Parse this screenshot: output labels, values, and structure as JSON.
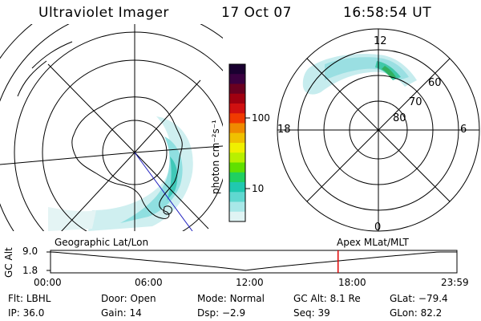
{
  "header": {
    "instrument": "Ultraviolet Imager",
    "date": "17 Oct 07",
    "time": "16:58:54 UT"
  },
  "colorbar": {
    "unit_label": "photon cm⁻²s⁻¹",
    "ticks": [
      "100",
      "10"
    ],
    "colors": [
      "#1a0030",
      "#3a0040",
      "#6a0020",
      "#a00010",
      "#d01010",
      "#f03a00",
      "#f08a00",
      "#f0c000",
      "#f0f000",
      "#b8f000",
      "#60e000",
      "#20d060",
      "#20c8b0",
      "#60d8d0",
      "#a8e8e8",
      "#e0f4f4"
    ]
  },
  "geo_map": {
    "label": "Geographic Lat/Lon"
  },
  "mag_map": {
    "label": "Apex MLat/MLT",
    "mlt_labels": {
      "top": "12",
      "left": "18",
      "right": "6",
      "bottom": "0"
    },
    "mlat_labels": [
      "60",
      "70",
      "80"
    ]
  },
  "altitude_plot": {
    "ylabel": "GC Alt",
    "yticks": [
      "9.0",
      "1.8"
    ],
    "xticks": [
      "00:00",
      "06:00",
      "12:00",
      "18:00",
      "23:59"
    ],
    "marker_time_hours": 16.98,
    "marker_color": "#e00000"
  },
  "status": {
    "filter_label": "Flt:",
    "filter_value": "LBHL",
    "door_label": "Door:",
    "door_value": "Open",
    "mode_label": "Mode:",
    "mode_value": "Normal",
    "gcalt_label": "GC Alt:",
    "gcalt_value": "8.1 Re",
    "glat_label": "GLat:",
    "glat_value": "−79.4",
    "ip_label": "IP:",
    "ip_value": "36.0",
    "gain_label": "Gain:",
    "gain_value": "14",
    "dsp_label": "Dsp:",
    "dsp_value": "−2.9",
    "seq_label": "Seq:",
    "seq_value": "39",
    "glon_label": "GLon:",
    "glon_value": "82.2"
  }
}
